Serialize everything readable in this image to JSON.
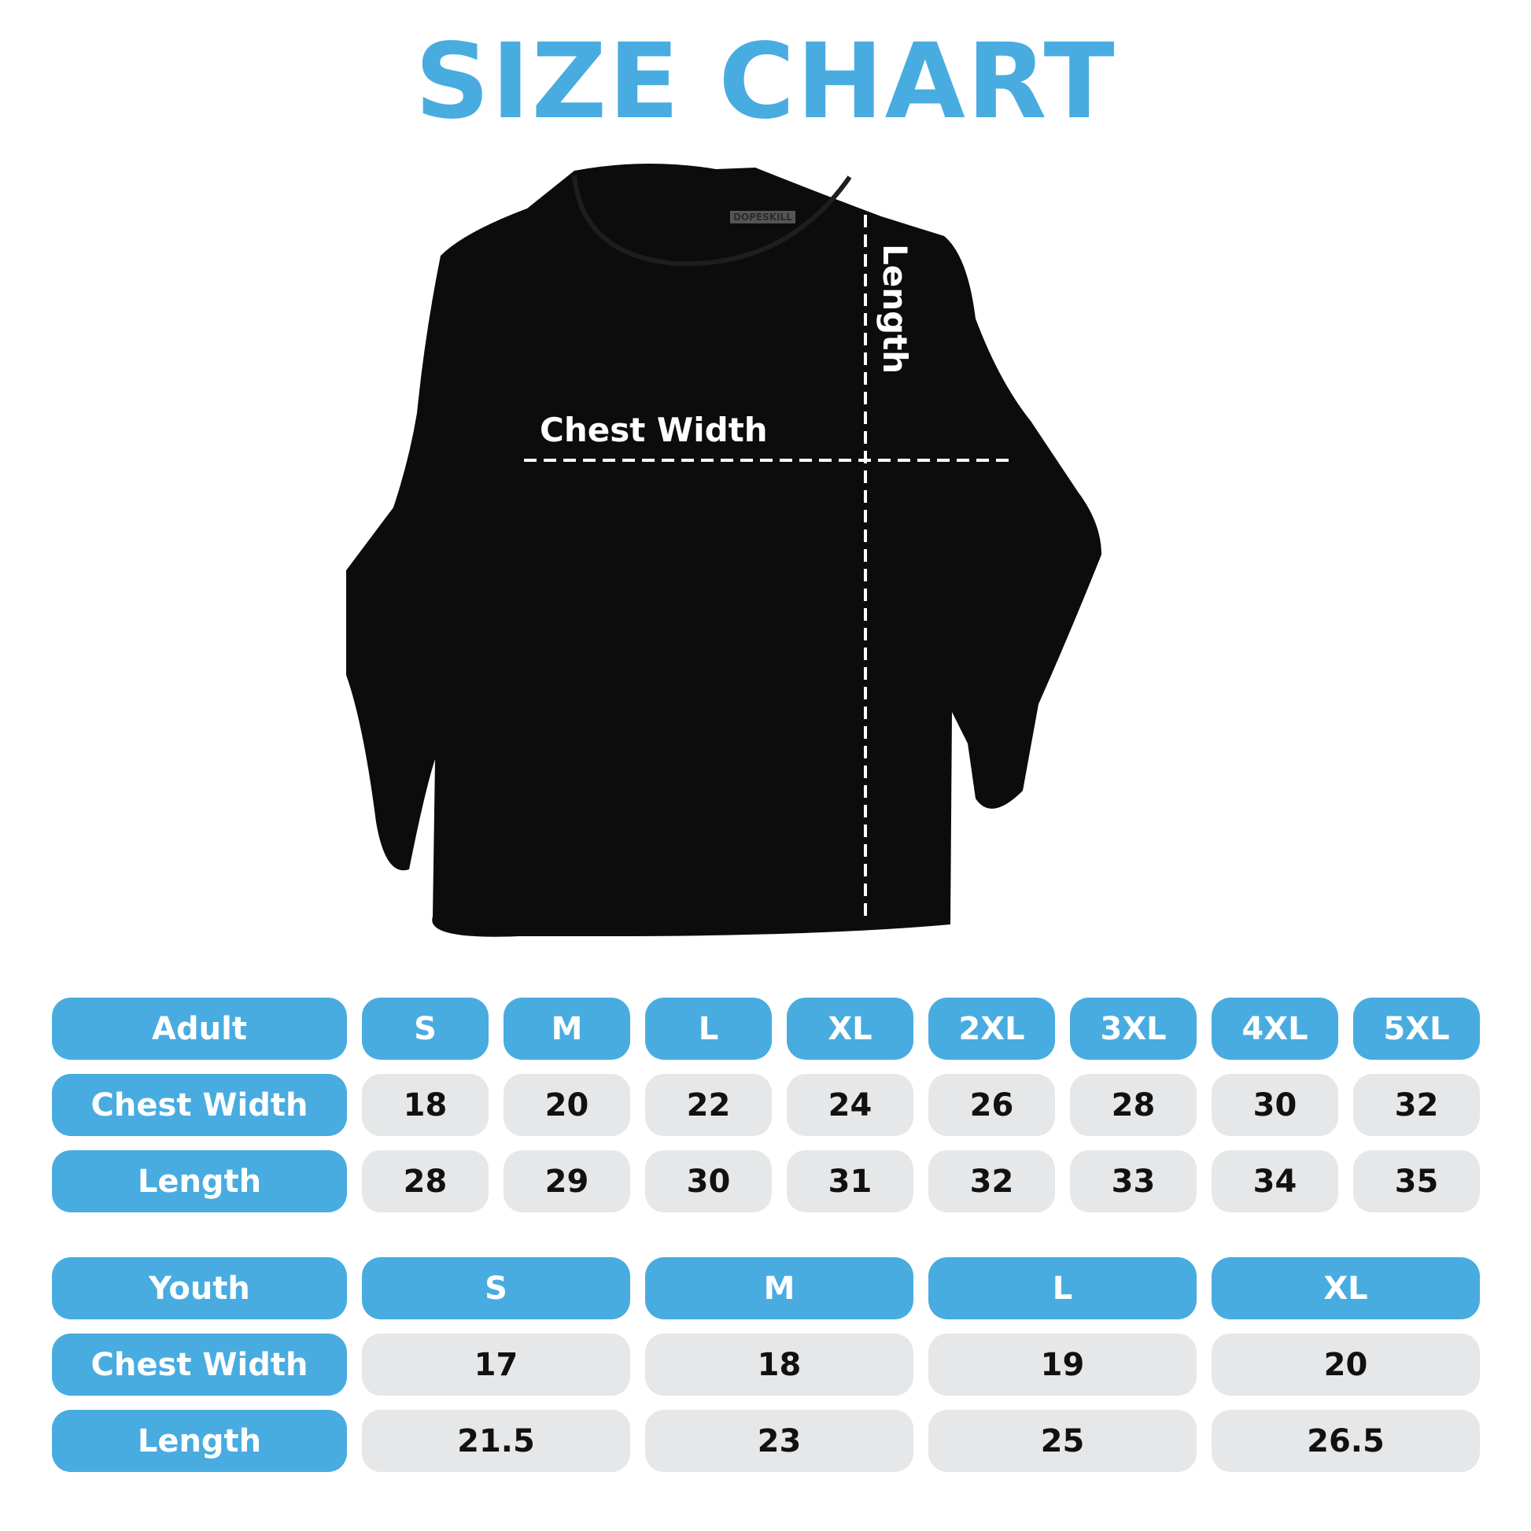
{
  "title": "SIZE CHART",
  "image": {
    "brand_tag": "DOPESKILL",
    "chest_label": "Chest Width",
    "length_label": "Length"
  },
  "colors": {
    "accent": "#48ACE0",
    "cell_bg": "#E6E7E8"
  },
  "adult": {
    "header": "Adult",
    "sizes": [
      "S",
      "M",
      "L",
      "XL",
      "2XL",
      "3XL",
      "4XL",
      "5XL"
    ],
    "rows": [
      {
        "label": "Chest Width",
        "values": [
          "18",
          "20",
          "22",
          "24",
          "26",
          "28",
          "30",
          "32"
        ]
      },
      {
        "label": "Length",
        "values": [
          "28",
          "29",
          "30",
          "31",
          "32",
          "33",
          "34",
          "35"
        ]
      }
    ]
  },
  "youth": {
    "header": "Youth",
    "sizes": [
      "S",
      "M",
      "L",
      "XL"
    ],
    "rows": [
      {
        "label": "Chest Width",
        "values": [
          "17",
          "18",
          "19",
          "20"
        ]
      },
      {
        "label": "Length",
        "values": [
          "21.5",
          "23",
          "25",
          "26.5"
        ]
      }
    ]
  }
}
